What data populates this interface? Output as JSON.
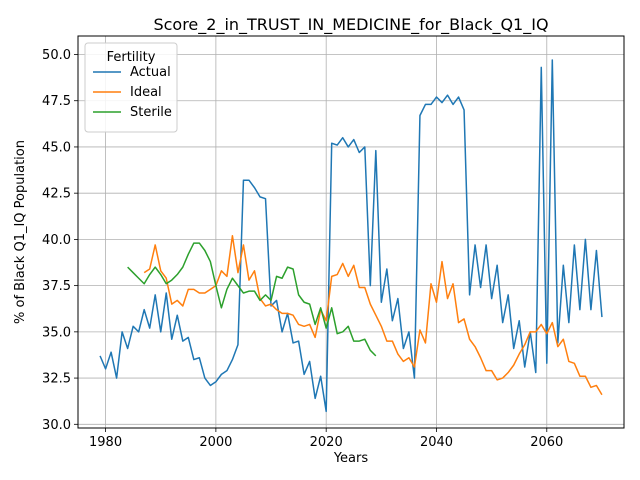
{
  "chart_data": {
    "type": "line",
    "title": "Score_2_in_TRUST_IN_MEDICINE_for_Black_Q1_IQ",
    "xlabel": "Years",
    "ylabel": "% of Black Q1_IQ Population",
    "xlim": [
      1975,
      2074
    ],
    "ylim": [
      29.8,
      51.0
    ],
    "x_ticks": [
      1980,
      2000,
      2020,
      2040,
      2060
    ],
    "y_ticks": [
      30.0,
      32.5,
      35.0,
      37.5,
      40.0,
      42.5,
      45.0,
      47.5,
      50.0
    ],
    "grid": true,
    "legend": {
      "title": "Fertility",
      "placement": "top-left"
    },
    "series": [
      {
        "name": "Actual",
        "color": "#1f77b4",
        "x": [
          1979,
          1980,
          1981,
          1982,
          1983,
          1984,
          1985,
          1986,
          1987,
          1988,
          1989,
          1990,
          1991,
          1992,
          1993,
          1994,
          1995,
          1996,
          1997,
          1998,
          1999,
          2000,
          2001,
          2002,
          2003,
          2004,
          2005,
          2006,
          2007,
          2008,
          2009,
          2010,
          2011,
          2012,
          2013,
          2014,
          2015,
          2016,
          2017,
          2018,
          2019,
          2020,
          2021,
          2022,
          2023,
          2024,
          2025,
          2026,
          2027,
          2028,
          2029,
          2030,
          2031,
          2032,
          2033,
          2034,
          2035,
          2036,
          2037,
          2038,
          2039,
          2040,
          2041,
          2042,
          2043,
          2044,
          2045,
          2046,
          2047,
          2048,
          2049,
          2050,
          2051,
          2052,
          2053,
          2054,
          2055,
          2056,
          2057,
          2058,
          2059,
          2060,
          2061,
          2062,
          2063,
          2064,
          2065,
          2066,
          2067,
          2068,
          2069,
          2070
        ],
        "values": [
          33.7,
          33.0,
          33.9,
          32.5,
          35.0,
          34.1,
          35.3,
          35.0,
          36.2,
          35.2,
          37.0,
          35.0,
          37.1,
          34.6,
          35.9,
          34.5,
          34.7,
          33.5,
          33.6,
          32.5,
          32.1,
          32.3,
          32.7,
          32.9,
          33.5,
          34.3,
          43.2,
          43.2,
          42.8,
          42.3,
          42.2,
          36.4,
          36.7,
          35.0,
          36.0,
          34.4,
          34.5,
          32.7,
          33.4,
          31.4,
          32.6,
          30.7,
          45.2,
          45.1,
          45.5,
          45.0,
          45.4,
          44.7,
          45.0,
          37.5,
          44.8,
          36.6,
          38.4,
          35.6,
          36.8,
          34.1,
          35.0,
          32.5,
          46.7,
          47.3,
          47.3,
          47.7,
          47.4,
          47.8,
          47.3,
          47.7,
          47.0,
          37.0,
          39.7,
          37.4,
          39.7,
          36.8,
          38.6,
          35.5,
          37.0,
          34.1,
          35.6,
          33.1,
          35.0,
          32.8,
          49.3,
          33.3,
          49.7,
          34.4,
          38.6,
          35.5,
          39.7,
          36.2,
          40.0,
          36.2,
          39.4,
          35.8
        ]
      },
      {
        "name": "Ideal",
        "color": "#ff7f0e",
        "x": [
          1987,
          1988,
          1989,
          1990,
          1991,
          1992,
          1993,
          1994,
          1995,
          1996,
          1997,
          1998,
          1999,
          2000,
          2001,
          2002,
          2003,
          2004,
          2005,
          2006,
          2007,
          2008,
          2009,
          2010,
          2011,
          2012,
          2013,
          2014,
          2015,
          2016,
          2017,
          2018,
          2019,
          2020,
          2021,
          2022,
          2023,
          2024,
          2025,
          2026,
          2027,
          2028,
          2029,
          2030,
          2031,
          2032,
          2033,
          2034,
          2035,
          2036,
          2037,
          2038,
          2039,
          2040,
          2041,
          2042,
          2043,
          2044,
          2045,
          2046,
          2047,
          2048,
          2049,
          2050,
          2051,
          2052,
          2053,
          2054,
          2055,
          2056,
          2057,
          2058,
          2059,
          2060,
          2061,
          2062,
          2063,
          2064,
          2065,
          2066,
          2067,
          2068,
          2069,
          2070
        ],
        "values": [
          38.2,
          38.4,
          39.7,
          38.3,
          37.9,
          36.5,
          36.7,
          36.4,
          37.3,
          37.3,
          37.1,
          37.1,
          37.3,
          37.5,
          38.3,
          38.0,
          40.2,
          38.2,
          39.7,
          37.8,
          38.3,
          36.8,
          36.4,
          36.5,
          36.2,
          36.0,
          36.0,
          35.9,
          35.4,
          35.3,
          35.4,
          34.7,
          36.2,
          35.6,
          38.0,
          38.1,
          38.7,
          38.0,
          38.6,
          37.4,
          37.4,
          36.5,
          35.9,
          35.3,
          34.5,
          34.5,
          33.8,
          33.4,
          33.6,
          33.1,
          35.1,
          34.4,
          37.6,
          36.6,
          38.8,
          36.8,
          37.6,
          35.5,
          35.7,
          34.6,
          34.2,
          33.6,
          32.9,
          32.9,
          32.4,
          32.5,
          32.8,
          33.2,
          33.8,
          34.3,
          35.0,
          35.0,
          35.4,
          34.9,
          35.5,
          34.2,
          34.6,
          33.4,
          33.3,
          32.6,
          32.6,
          32.0,
          32.1,
          31.6
        ]
      },
      {
        "name": "Sterile",
        "color": "#2ca02c",
        "x": [
          1984,
          1985,
          1986,
          1987,
          1988,
          1989,
          1990,
          1991,
          1992,
          1993,
          1994,
          1995,
          1996,
          1997,
          1998,
          1999,
          2000,
          2001,
          2002,
          2003,
          2004,
          2005,
          2006,
          2007,
          2008,
          2009,
          2010,
          2011,
          2012,
          2013,
          2014,
          2015,
          2016,
          2017,
          2018,
          2019,
          2020,
          2021,
          2022,
          2023,
          2024,
          2025,
          2026,
          2027,
          2028,
          2029
        ],
        "values": [
          38.5,
          38.2,
          37.9,
          37.6,
          38.1,
          38.5,
          38.1,
          37.6,
          37.8,
          38.1,
          38.5,
          39.2,
          39.8,
          39.8,
          39.4,
          38.8,
          37.5,
          36.3,
          37.3,
          37.9,
          37.5,
          37.1,
          37.2,
          37.2,
          36.7,
          37.0,
          36.7,
          38.0,
          37.9,
          38.5,
          38.4,
          37.0,
          36.6,
          36.5,
          35.4,
          36.3,
          35.2,
          36.3,
          34.9,
          35.0,
          35.3,
          34.5,
          34.5,
          34.6,
          34.0,
          33.7
        ]
      }
    ]
  }
}
